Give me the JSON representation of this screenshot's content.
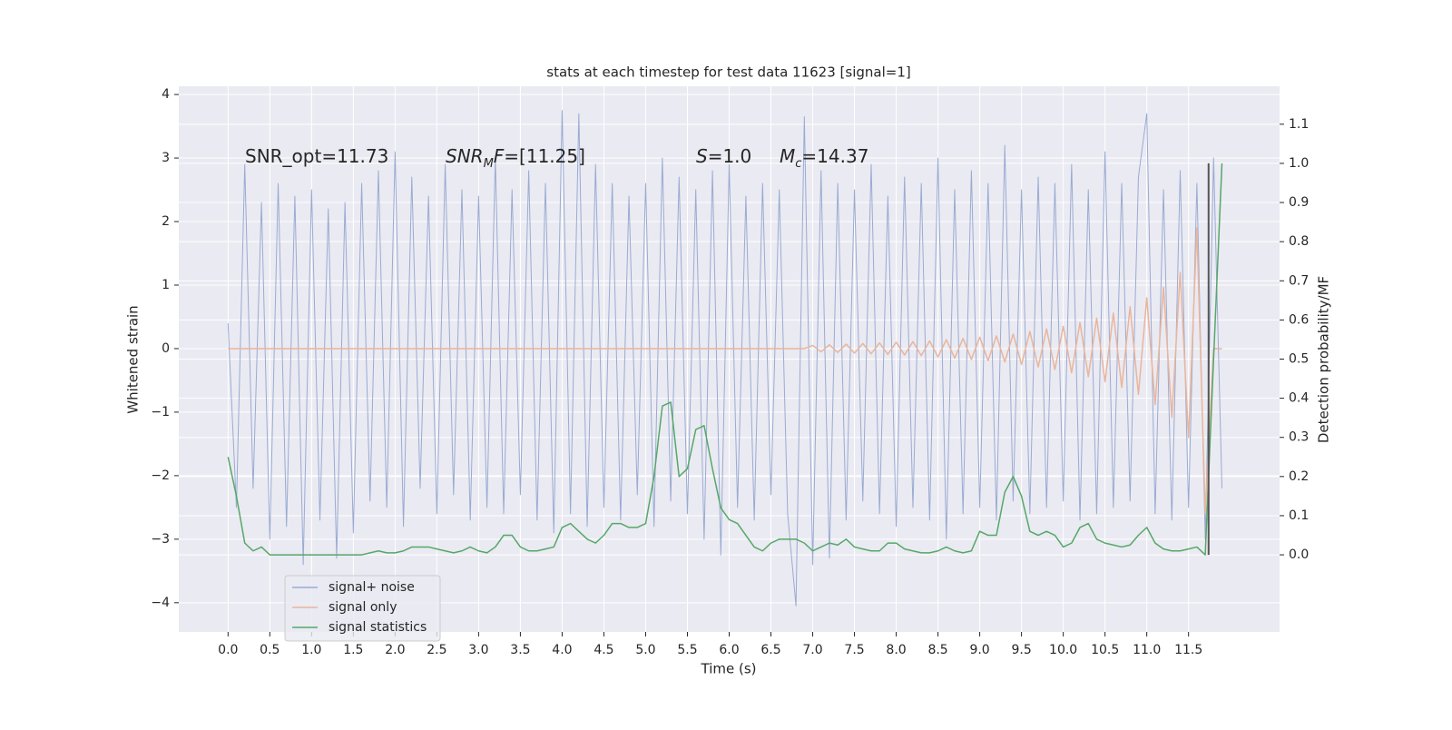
{
  "chart_data": {
    "type": "line",
    "title": "stats at each timestep for test data 11623 [signal=1]",
    "x_label": "Time (s)",
    "y_label": "Whitened strain",
    "y2_label": "Detection probability/MF",
    "annotations": [
      [
        {
          "text": "SNR_opt=11.73"
        }
      ],
      [
        {
          "text": "SNR",
          "italic": true
        },
        {
          "text": "M",
          "italic": true,
          "sub": true
        },
        {
          "text": "F",
          "italic": true
        },
        {
          "text": "=[11.25]"
        }
      ],
      [
        {
          "text": "S",
          "italic": true
        },
        {
          "text": "=1.0"
        }
      ],
      [
        {
          "text": "M",
          "italic": true
        },
        {
          "text": "c",
          "italic": true,
          "sub": true
        },
        {
          "text": "=14.37"
        }
      ]
    ],
    "x": [
      0,
      0.1,
      0.2,
      0.3,
      0.4,
      0.5,
      0.6,
      0.7,
      0.8,
      0.9,
      1,
      1.1,
      1.2,
      1.3,
      1.4,
      1.5,
      1.6,
      1.7,
      1.8,
      1.9,
      2,
      2.1,
      2.2,
      2.3,
      2.4,
      2.5,
      2.6,
      2.7,
      2.8,
      2.9,
      3,
      3.1,
      3.2,
      3.3,
      3.4,
      3.5,
      3.6,
      3.7,
      3.8,
      3.9,
      4,
      4.1,
      4.2,
      4.3,
      4.4,
      4.5,
      4.6,
      4.7,
      4.8,
      4.9,
      5,
      5.1,
      5.2,
      5.3,
      5.4,
      5.5,
      5.6,
      5.7,
      5.8,
      5.9,
      6,
      6.1,
      6.2,
      6.3,
      6.4,
      6.5,
      6.6,
      6.7,
      6.8,
      6.9,
      7,
      7.1,
      7.2,
      7.3,
      7.4,
      7.5,
      7.6,
      7.7,
      7.8,
      7.9,
      8,
      8.1,
      8.2,
      8.3,
      8.4,
      8.5,
      8.6,
      8.7,
      8.8,
      8.9,
      9,
      9.1,
      9.2,
      9.3,
      9.4,
      9.5,
      9.6,
      9.7,
      9.8,
      9.9,
      10,
      10.1,
      10.2,
      10.3,
      10.4,
      10.5,
      10.6,
      10.7,
      10.8,
      10.9,
      11,
      11.1,
      11.2,
      11.3,
      11.4,
      11.5,
      11.6,
      11.7,
      11.8,
      11.9
    ],
    "series": [
      {
        "name": "signal+ noise",
        "color": "#9aabd2",
        "axis": "y",
        "values": [
          0.4,
          -2.5,
          2.9,
          -2.2,
          2.3,
          -3.0,
          2.6,
          -2.8,
          2.4,
          -3.4,
          2.5,
          -2.7,
          2.2,
          -3.3,
          2.3,
          -2.9,
          2.6,
          -2.4,
          2.8,
          -2.5,
          3.1,
          -2.8,
          2.7,
          -2.2,
          2.4,
          -2.6,
          2.9,
          -2.3,
          2.5,
          -2.7,
          2.4,
          -2.5,
          3.0,
          -2.6,
          2.5,
          -2.3,
          2.8,
          -2.7,
          2.6,
          -2.9,
          3.75,
          -2.6,
          3.7,
          -2.8,
          2.9,
          -2.5,
          2.6,
          -2.7,
          2.4,
          -2.3,
          2.6,
          -2.8,
          3.0,
          -2.4,
          2.7,
          -2.6,
          2.5,
          -3.0,
          2.8,
          -3.25,
          2.9,
          -2.5,
          2.4,
          -2.7,
          2.6,
          -2.3,
          2.5,
          -2.6,
          -4.05,
          3.65,
          -3.4,
          2.8,
          -3.3,
          2.6,
          -2.7,
          2.5,
          -2.4,
          2.9,
          -2.6,
          2.4,
          -2.8,
          2.7,
          -2.5,
          2.6,
          -2.7,
          3.0,
          -3.0,
          2.5,
          -2.6,
          2.8,
          -2.5,
          2.6,
          -2.7,
          3.2,
          -2.4,
          2.5,
          -2.6,
          2.7,
          -2.5,
          2.6,
          -2.4,
          2.9,
          -2.7,
          2.5,
          -2.6,
          3.1,
          -2.5,
          2.6,
          -2.4,
          2.7,
          3.7,
          -2.6,
          2.5,
          -2.7,
          2.8,
          -2.5,
          2.6,
          -3.0,
          3.0,
          -2.2
        ]
      },
      {
        "name": "signal only",
        "color": "#e9b59c",
        "axis": "y",
        "values": [
          0,
          0,
          0,
          0,
          0,
          0,
          0,
          0,
          0,
          0,
          0,
          0,
          0,
          0,
          0,
          0,
          0,
          0,
          0,
          0,
          0,
          0,
          0,
          0,
          0,
          0,
          0,
          0,
          0,
          0,
          0,
          0,
          0,
          0,
          0,
          0,
          0,
          0,
          0,
          0,
          0,
          0,
          0,
          0,
          0,
          0,
          0,
          0,
          0,
          0,
          0,
          0,
          0,
          0,
          0,
          0,
          0,
          0,
          0,
          0,
          0,
          0,
          0,
          0,
          0,
          0,
          0,
          0,
          0,
          0,
          0.05,
          -0.05,
          0.06,
          -0.06,
          0.07,
          -0.07,
          0.08,
          -0.08,
          0.09,
          -0.09,
          0.1,
          -0.1,
          0.11,
          -0.11,
          0.12,
          -0.13,
          0.14,
          -0.15,
          0.16,
          -0.17,
          0.18,
          -0.19,
          0.2,
          -0.21,
          0.23,
          -0.25,
          0.27,
          -0.29,
          0.31,
          -0.33,
          0.35,
          -0.38,
          0.41,
          -0.44,
          0.48,
          -0.52,
          0.56,
          -0.61,
          0.66,
          -0.72,
          0.8,
          -0.88,
          0.97,
          -1.08,
          1.2,
          -1.4,
          1.9,
          -2.6,
          0,
          0
        ]
      },
      {
        "name": "signal statistics",
        "color": "#55a868",
        "axis": "y2",
        "values": [
          0.25,
          0.15,
          0.03,
          0.01,
          0.02,
          0.0,
          0.0,
          0.0,
          0.0,
          0.0,
          0.0,
          0.0,
          0.0,
          0.0,
          0.0,
          0.0,
          0.0,
          0.005,
          0.01,
          0.005,
          0.005,
          0.01,
          0.02,
          0.02,
          0.02,
          0.015,
          0.01,
          0.005,
          0.01,
          0.02,
          0.01,
          0.005,
          0.02,
          0.05,
          0.05,
          0.02,
          0.01,
          0.01,
          0.015,
          0.02,
          0.07,
          0.08,
          0.06,
          0.04,
          0.03,
          0.05,
          0.08,
          0.08,
          0.07,
          0.07,
          0.08,
          0.2,
          0.38,
          0.39,
          0.2,
          0.22,
          0.32,
          0.33,
          0.22,
          0.12,
          0.09,
          0.08,
          0.05,
          0.02,
          0.01,
          0.03,
          0.04,
          0.04,
          0.04,
          0.03,
          0.01,
          0.02,
          0.03,
          0.025,
          0.04,
          0.02,
          0.015,
          0.01,
          0.01,
          0.03,
          0.03,
          0.015,
          0.01,
          0.005,
          0.005,
          0.01,
          0.02,
          0.01,
          0.005,
          0.01,
          0.06,
          0.05,
          0.05,
          0.16,
          0.2,
          0.15,
          0.06,
          0.05,
          0.06,
          0.05,
          0.02,
          0.03,
          0.07,
          0.08,
          0.04,
          0.03,
          0.025,
          0.02,
          0.025,
          0.05,
          0.07,
          0.03,
          0.015,
          0.01,
          0.01,
          0.015,
          0.02,
          0.0,
          0.5,
          1.0
        ]
      }
    ],
    "vline": {
      "x": 11.74,
      "from": 0,
      "to": 1,
      "color": "#555555"
    },
    "xlim": [
      -0.59,
      12.59
    ],
    "ylim": [
      -4.46,
      4.13
    ],
    "y2lim": [
      -0.197,
      1.197
    ],
    "xticks": [
      {
        "value": 0,
        "label": "0.0"
      },
      0.5,
      {
        "value": 1,
        "label": "1.0"
      },
      1.5,
      {
        "value": 2,
        "label": "2.0"
      },
      2.5,
      {
        "value": 3,
        "label": "3.0"
      },
      3.5,
      {
        "value": 4,
        "label": "4.0"
      },
      4.5,
      {
        "value": 5,
        "label": "5.0"
      },
      5.5,
      {
        "value": 6,
        "label": "6.0"
      },
      6.5,
      {
        "value": 7,
        "label": "7.0"
      },
      7.5,
      {
        "value": 8,
        "label": "8.0"
      },
      8.5,
      {
        "value": 9,
        "label": "9.0"
      },
      9.5,
      {
        "value": 10,
        "label": "10.0"
      },
      10.5,
      {
        "value": 11,
        "label": "11.0"
      },
      11.5
    ],
    "yticks": [
      {
        "value": -4,
        "label": "−4"
      },
      {
        "value": -3,
        "label": "−3"
      },
      {
        "value": -2,
        "label": "−2"
      },
      {
        "value": -1,
        "label": "−1"
      },
      0,
      1,
      2,
      3,
      4
    ],
    "y2ticks": [
      {
        "value": 0,
        "label": "0.0"
      },
      0.1,
      0.2,
      0.3,
      0.4,
      0.5,
      0.6,
      0.7,
      0.8,
      0.9,
      {
        "value": 1,
        "label": "1.0"
      },
      1.1
    ],
    "grid": true,
    "legend": "lower left",
    "background": "#eaeaf2"
  }
}
